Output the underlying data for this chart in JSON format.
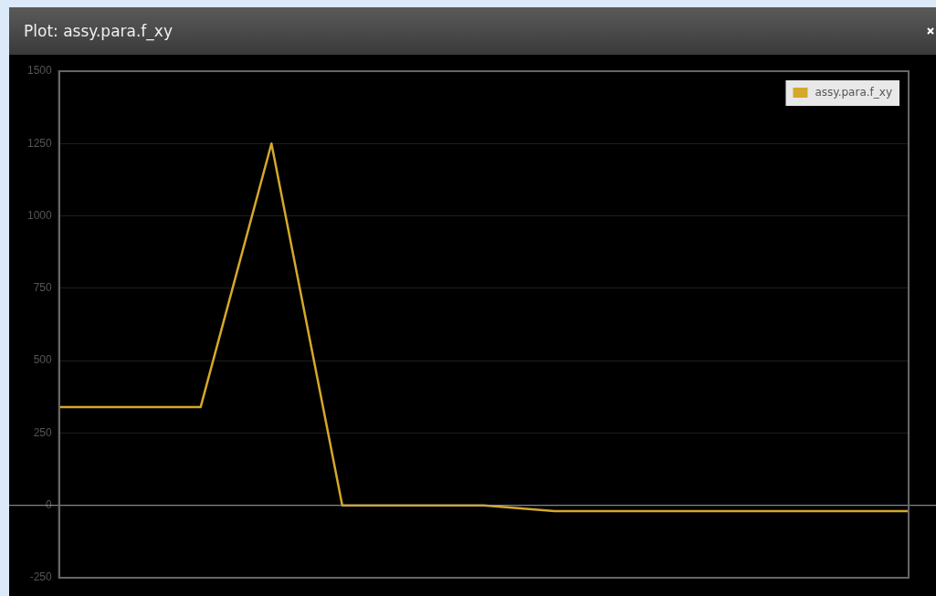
{
  "chart_data": {
    "type": "line",
    "title": "Plot: assy.para.f_xy",
    "categories": [
      null,
      null,
      null,
      null,
      null,
      null,
      null,
      null,
      null,
      null,
      null,
      null,
      null
    ],
    "series": [
      {
        "name": "assy.para.f_xy",
        "color": "#d4a82a",
        "values": [
          340,
          340,
          340,
          1250,
          0,
          0,
          0,
          -20,
          -20,
          -20,
          -20,
          -20,
          -20
        ]
      }
    ],
    "ylim": [
      -250,
      1500
    ],
    "yticks": [
      -250,
      0,
      250,
      500,
      750,
      1000,
      1250,
      1500
    ],
    "grid": "y",
    "legend": "top right",
    "tick_labels": "y",
    "marker": "none",
    "line_style": "solid",
    "ref_lines": [
      {
        "axis": "y",
        "value": 0,
        "color": "#9aa4b4"
      }
    ]
  }
}
